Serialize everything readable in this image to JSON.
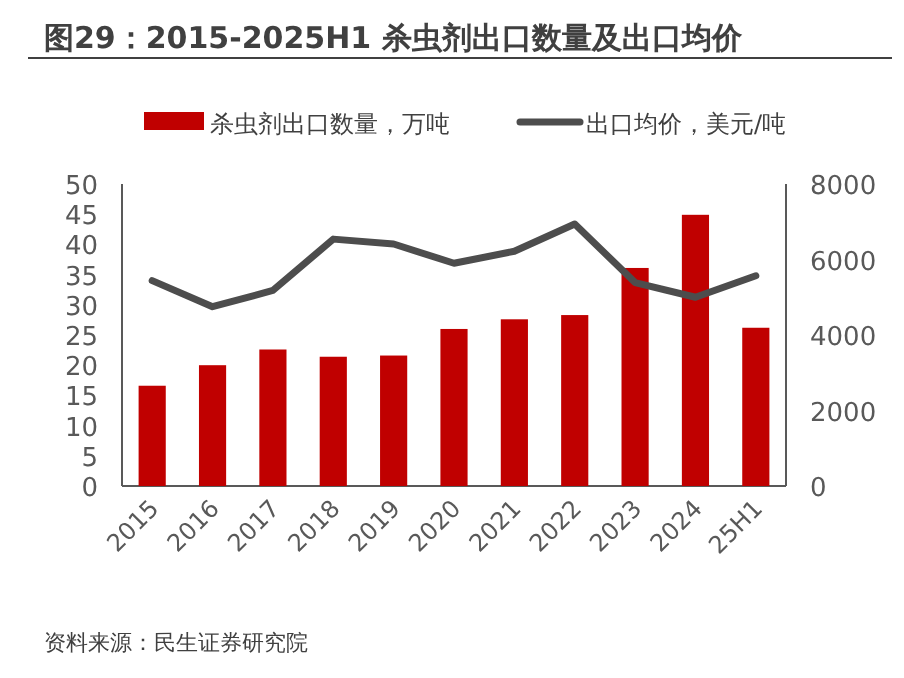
{
  "chart_data": {
    "type": "bar",
    "title": "图29：2015-2025H1 杀虫剂出口数量及出口均价",
    "categories": [
      "2015",
      "2016",
      "2017",
      "2018",
      "2019",
      "2020",
      "2021",
      "2022",
      "2023",
      "2024",
      "25H1"
    ],
    "series": [
      {
        "name": "杀虫剂出口数量，万吨",
        "color": "#c00000",
        "values": [
          16.6,
          20.0,
          22.6,
          21.4,
          21.6,
          26.0,
          27.6,
          28.3,
          36.1,
          44.9,
          26.2
        ]
      },
      {
        "name": "出口均价，美元/吨",
        "type": "line",
        "axis": "y2",
        "color": "#4d4d4d",
        "values": [
          5440,
          4750,
          5180,
          6540,
          6410,
          5900,
          6220,
          6940,
          5390,
          5000,
          5570
        ]
      }
    ],
    "ylim": [
      0,
      50
    ],
    "yticks": [
      0,
      5,
      10,
      15,
      20,
      25,
      30,
      35,
      40,
      45,
      50
    ],
    "y2lim": [
      0,
      8000
    ],
    "y2ticks": [
      0,
      2000,
      4000,
      6000,
      8000
    ],
    "legend": "top",
    "marker": "none",
    "line_style": "solid",
    "annotations": [
      "资料来源：民生证券研究院"
    ]
  }
}
